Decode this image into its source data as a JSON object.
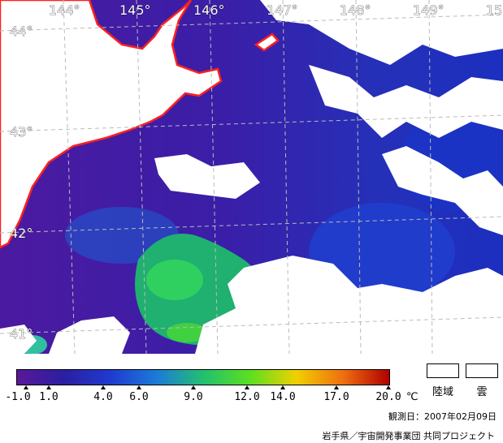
{
  "map": {
    "longitude_labels": [
      "144°",
      "145°",
      "146°",
      "147°",
      "148°",
      "149°",
      "15"
    ],
    "latitude_labels": [
      "44°",
      "43°",
      "42°",
      "41°"
    ],
    "coastline_color": "#ff2020",
    "land_color": "#ffffff"
  },
  "colorbar": {
    "ticks": [
      "-1.0",
      "1.0",
      "4.0",
      "6.0",
      "9.0",
      "12.0",
      "14.0",
      "17.0",
      "20.0"
    ],
    "unit": "℃",
    "colors": [
      "#5a189a",
      "#2b1fa0",
      "#1f3ad0",
      "#1c7ad8",
      "#22c070",
      "#5ae020",
      "#f0d000",
      "#f07010",
      "#b00000"
    ]
  },
  "legend": {
    "land_label": "陸域",
    "cloud_label": "雲"
  },
  "footer": {
    "observation": "観測日：2007年02月09日",
    "credit": "岩手県／宇宙開発事業団 共同プロジェクト"
  }
}
